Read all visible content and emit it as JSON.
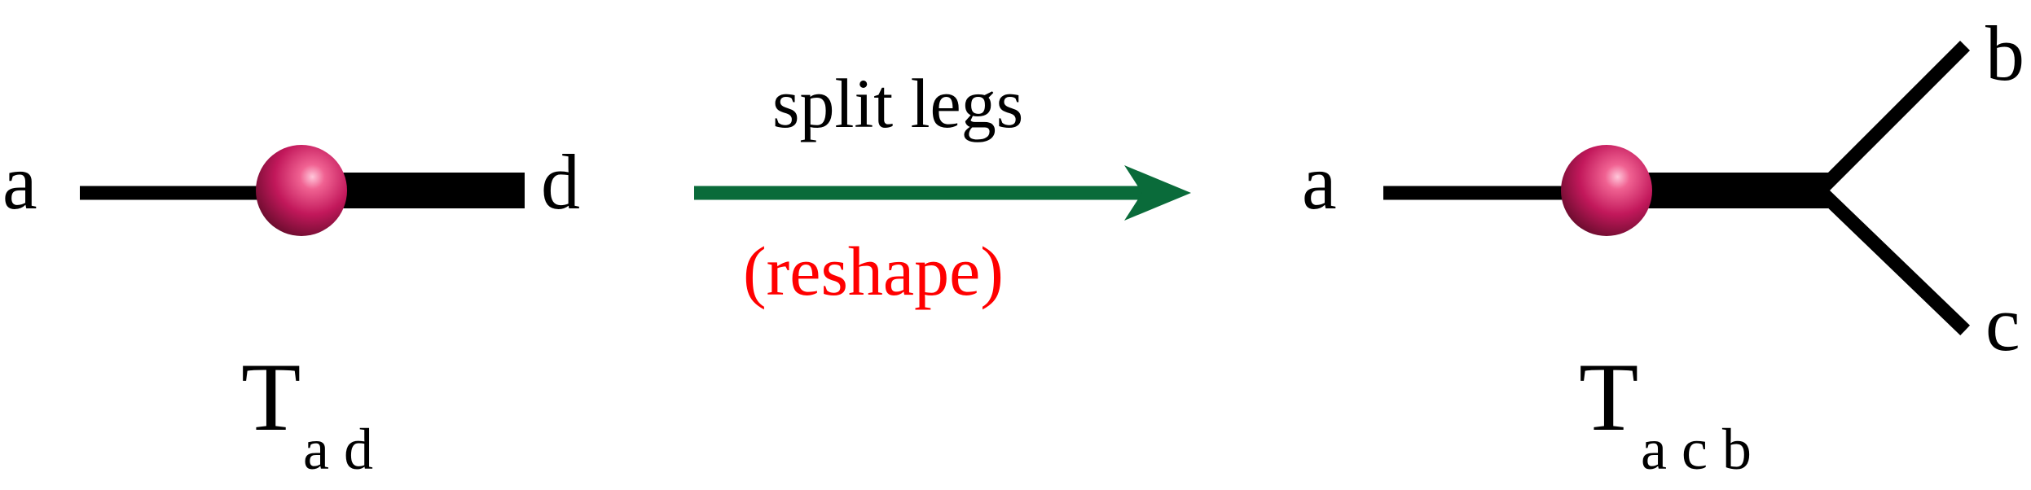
{
  "colors": {
    "line": "#000000",
    "arrow": "#0a6b3a",
    "reshape_label": "#ff0000",
    "node": "#c2185b",
    "node_highlight": "#f8bbd0",
    "node_shadow": "#6a0d2b"
  },
  "left_tensor": {
    "leg_left_label": "a",
    "leg_right_label": "d",
    "name_letter": "T",
    "name_subscript": "a d"
  },
  "operation": {
    "top_label": "split legs",
    "bottom_label": "(reshape)"
  },
  "right_tensor": {
    "leg_left_label": "a",
    "leg_upper_label": "b",
    "leg_lower_label": "c",
    "name_letter": "T",
    "name_subscript": "a c b"
  }
}
